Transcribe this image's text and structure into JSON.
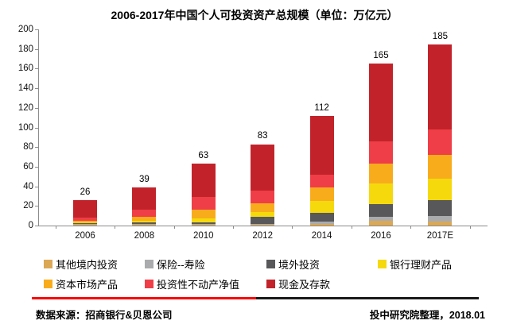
{
  "title": "2006-2017年中国个人可投资资产总规模（单位：万亿元）",
  "chart_data": {
    "type": "bar",
    "stacked": true,
    "unit": "万亿元",
    "title": "2006-2017年中国个人可投资资产总规模（单位：万亿元）",
    "categories": [
      "2006",
      "2008",
      "2010",
      "2012",
      "2014",
      "2016",
      "2017E"
    ],
    "totals": [
      26,
      39,
      63,
      83,
      112,
      165,
      185
    ],
    "series": [
      {
        "name": "其他境内投资",
        "color": "#DBA855",
        "values": [
          0.5,
          0.5,
          0.5,
          0.5,
          2,
          4.5,
          4
        ]
      },
      {
        "name": "保险--寿险",
        "color": "#A9ABAD",
        "values": [
          1.5,
          1.5,
          1,
          1.5,
          2,
          4.5,
          6
        ]
      },
      {
        "name": "境外投资",
        "color": "#58585A",
        "values": [
          0.3,
          1,
          2,
          7,
          9,
          13,
          16
        ]
      },
      {
        "name": "银行理财产品",
        "color": "#F5D90D",
        "values": [
          0.7,
          1.5,
          3.5,
          5,
          12,
          21,
          22
        ]
      },
      {
        "name": "资本市场产品",
        "color": "#F8AC1C",
        "values": [
          2,
          4.5,
          9.5,
          9,
          13.5,
          20,
          24
        ]
      },
      {
        "name": "投资性不动产净值",
        "color": "#EF3E47",
        "values": [
          3.5,
          7,
          12.5,
          13,
          13.5,
          23,
          26
        ]
      },
      {
        "name": "现金及存款",
        "color": "#C2232B",
        "values": [
          17.5,
          23,
          34,
          47,
          60,
          79,
          87
        ]
      }
    ],
    "ylim": [
      0,
      200
    ],
    "ytick_step": 20,
    "grid": false,
    "legend_position": "bottom"
  },
  "legend": {
    "row1": [
      "其他境内投资",
      "保险--寿险",
      "境外投资",
      "银行理财产品"
    ],
    "row2": [
      "资本市场产品",
      "投资性不动产净值",
      "现金及存款"
    ]
  },
  "footer": {
    "source": "数据来源：招商银行&贝恩公司",
    "credit": "投中研究院整理，2018.01"
  },
  "colors": {
    "accent_line_red": "#FF0000",
    "accent_line_black": "#1A1A1A",
    "axis": "#8C8C8C"
  }
}
